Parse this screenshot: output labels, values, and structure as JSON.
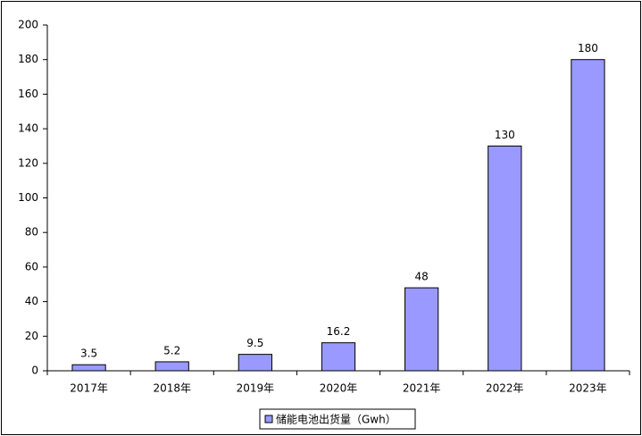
{
  "chart_data": {
    "type": "bar",
    "categories": [
      "2017年",
      "2018年",
      "2019年",
      "2020年",
      "2021年",
      "2022年",
      "2023年"
    ],
    "series": [
      {
        "name": "储能电池出货量（Gwh）",
        "color": "#9999ff",
        "values": [
          3.5,
          5.2,
          9.5,
          16.2,
          48,
          130,
          180
        ]
      }
    ],
    "ylim": [
      0,
      200
    ],
    "yticks": [
      0,
      20,
      40,
      60,
      80,
      100,
      120,
      140,
      160,
      180,
      200
    ],
    "grid": false,
    "legend": "bottom"
  }
}
